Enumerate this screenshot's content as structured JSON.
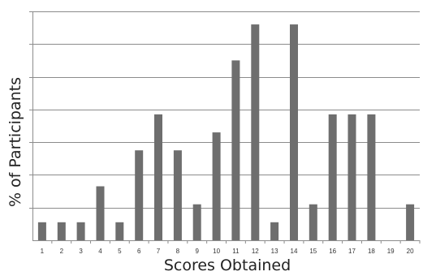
{
  "chart_data": {
    "type": "bar",
    "title": "",
    "xlabel": "Scores Obtained",
    "ylabel": "% of Participants",
    "categories": [
      "1",
      "2",
      "3",
      "4",
      "5",
      "6",
      "7",
      "8",
      "9",
      "10",
      "11",
      "12",
      "13",
      "14",
      "15",
      "16",
      "17",
      "18",
      "19",
      "20"
    ],
    "values": [
      0.55,
      0.55,
      0.55,
      1.65,
      0.55,
      2.75,
      3.85,
      2.75,
      1.1,
      3.3,
      5.5,
      6.6,
      0.55,
      6.6,
      1.1,
      3.85,
      3.85,
      3.85,
      0,
      1.1
    ],
    "ylim": [
      0,
      7
    ],
    "y_gridlines": 7,
    "y_tick_labels_shown": false,
    "grid": true,
    "bar_color": "#6e6e6e",
    "grid_color": "#8c8c8c"
  }
}
